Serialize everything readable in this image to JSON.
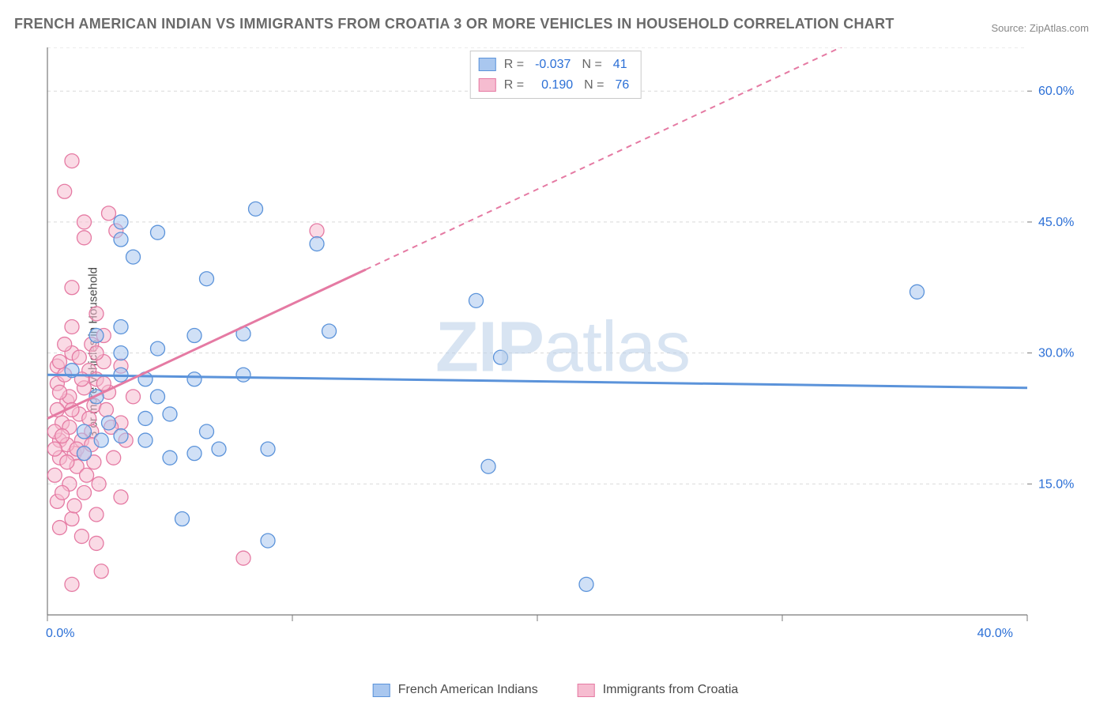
{
  "title": "FRENCH AMERICAN INDIAN VS IMMIGRANTS FROM CROATIA 3 OR MORE VEHICLES IN HOUSEHOLD CORRELATION CHART",
  "source_label": "Source: ",
  "source_name": "ZipAtlas.com",
  "ylabel": "3 or more Vehicles in Household",
  "watermark": "ZIPatlas",
  "chart": {
    "type": "scatter",
    "xlim": [
      0,
      40
    ],
    "ylim": [
      0,
      65
    ],
    "xticks_pct": [
      0,
      10,
      20,
      30,
      40
    ],
    "xticks_labeled": {
      "0": "0.0%",
      "40": "40.0%"
    },
    "yticks_pct": [
      15,
      30,
      45,
      60
    ],
    "yticks_labels": [
      "15.0%",
      "30.0%",
      "45.0%",
      "60.0%"
    ],
    "grid_color": "#d9d9d9",
    "axis_color": "#7a7a7a",
    "background_color": "#ffffff",
    "marker_radius": 9,
    "marker_opacity": 0.55,
    "line_width_solid": 3,
    "line_width_dash": 2,
    "series": [
      {
        "id": "blue",
        "label": "French American Indians",
        "color_fill": "#a9c7ef",
        "color_stroke": "#5b93da",
        "R": "-0.037",
        "N": "41",
        "trend": {
          "y_at_x0": 27.5,
          "y_at_xmax": 26.0,
          "dash_from_x": null
        },
        "points": [
          [
            3.0,
            43.0
          ],
          [
            4.5,
            43.8
          ],
          [
            3.5,
            41.0
          ],
          [
            6.5,
            38.5
          ],
          [
            8.5,
            46.5
          ],
          [
            11.0,
            42.5
          ],
          [
            3.0,
            33.0
          ],
          [
            4.5,
            30.5
          ],
          [
            6.0,
            32.0
          ],
          [
            8.0,
            32.2
          ],
          [
            11.5,
            32.5
          ],
          [
            3.0,
            27.5
          ],
          [
            4.0,
            27.0
          ],
          [
            2.0,
            25.0
          ],
          [
            5.0,
            23.0
          ],
          [
            7.0,
            19.0
          ],
          [
            9.0,
            19.0
          ],
          [
            6.0,
            18.5
          ],
          [
            9.0,
            8.5
          ],
          [
            5.5,
            11.0
          ],
          [
            18.0,
            17.0
          ],
          [
            18.5,
            29.5
          ],
          [
            17.5,
            36.0
          ],
          [
            22.0,
            3.5
          ],
          [
            35.5,
            37.0
          ],
          [
            1.5,
            21.0
          ],
          [
            2.5,
            22.0
          ],
          [
            1.0,
            28.0
          ],
          [
            3.0,
            30.0
          ],
          [
            4.5,
            25.0
          ],
          [
            8.0,
            27.5
          ],
          [
            6.0,
            27.0
          ],
          [
            2.0,
            32.0
          ],
          [
            3.0,
            20.5
          ],
          [
            3.0,
            45.0
          ],
          [
            4.0,
            20.0
          ],
          [
            6.5,
            21.0
          ],
          [
            5.0,
            18.0
          ],
          [
            1.5,
            18.5
          ],
          [
            2.2,
            20.0
          ],
          [
            4.0,
            22.5
          ]
        ]
      },
      {
        "id": "pink",
        "label": "Immigrants from Croatia",
        "color_fill": "#f6bcd0",
        "color_stroke": "#e57aa3",
        "R": "0.190",
        "N": "76",
        "trend": {
          "y_at_x0": 22.5,
          "y_at_xmax": 75.0,
          "dash_from_x": 13.0
        },
        "points": [
          [
            1.0,
            52.0
          ],
          [
            0.7,
            48.5
          ],
          [
            1.5,
            45.0
          ],
          [
            1.5,
            43.2
          ],
          [
            2.5,
            46.0
          ],
          [
            2.8,
            44.0
          ],
          [
            1.0,
            37.5
          ],
          [
            2.0,
            34.5
          ],
          [
            2.3,
            32.0
          ],
          [
            1.0,
            30.0
          ],
          [
            1.7,
            28.0
          ],
          [
            0.4,
            26.5
          ],
          [
            0.8,
            24.5
          ],
          [
            1.3,
            23.0
          ],
          [
            1.8,
            21.0
          ],
          [
            0.5,
            20.0
          ],
          [
            1.1,
            18.5
          ],
          [
            0.3,
            16.0
          ],
          [
            0.9,
            15.0
          ],
          [
            1.5,
            14.0
          ],
          [
            0.4,
            13.0
          ],
          [
            1.0,
            11.0
          ],
          [
            0.5,
            10.0
          ],
          [
            1.4,
            9.0
          ],
          [
            2.0,
            8.2
          ],
          [
            2.2,
            5.0
          ],
          [
            1.0,
            3.5
          ],
          [
            2.5,
            25.5
          ],
          [
            3.0,
            22.0
          ],
          [
            3.2,
            20.0
          ],
          [
            2.7,
            18.0
          ],
          [
            3.5,
            25.0
          ],
          [
            3.0,
            13.5
          ],
          [
            3.0,
            28.5
          ],
          [
            8.0,
            6.5
          ],
          [
            11.0,
            44.0
          ],
          [
            0.6,
            22.0
          ],
          [
            0.3,
            21.0
          ],
          [
            0.8,
            19.5
          ],
          [
            1.4,
            20.0
          ],
          [
            0.5,
            18.0
          ],
          [
            1.2,
            17.0
          ],
          [
            0.9,
            25.0
          ],
          [
            1.5,
            26.0
          ],
          [
            2.0,
            27.0
          ],
          [
            1.0,
            33.0
          ],
          [
            1.8,
            31.0
          ],
          [
            2.3,
            29.0
          ],
          [
            0.4,
            28.5
          ],
          [
            1.6,
            16.0
          ],
          [
            2.1,
            15.0
          ],
          [
            0.6,
            14.0
          ],
          [
            1.1,
            12.5
          ],
          [
            2.0,
            11.5
          ],
          [
            0.7,
            27.5
          ],
          [
            1.3,
            29.5
          ],
          [
            0.4,
            23.5
          ],
          [
            1.9,
            24.0
          ],
          [
            0.5,
            25.5
          ],
          [
            1.7,
            22.5
          ],
          [
            0.9,
            21.5
          ],
          [
            2.4,
            23.5
          ],
          [
            1.2,
            19.0
          ],
          [
            0.8,
            17.5
          ],
          [
            1.5,
            18.5
          ],
          [
            0.3,
            19.0
          ],
          [
            2.6,
            21.5
          ],
          [
            1.0,
            23.5
          ],
          [
            0.6,
            20.5
          ],
          [
            1.8,
            19.5
          ],
          [
            1.4,
            27.0
          ],
          [
            2.0,
            30.0
          ],
          [
            0.7,
            31.0
          ],
          [
            1.9,
            17.5
          ],
          [
            2.3,
            26.5
          ],
          [
            0.5,
            29.0
          ]
        ]
      }
    ]
  },
  "legend_top": {
    "R_label": "R =",
    "N_label": "N ="
  }
}
